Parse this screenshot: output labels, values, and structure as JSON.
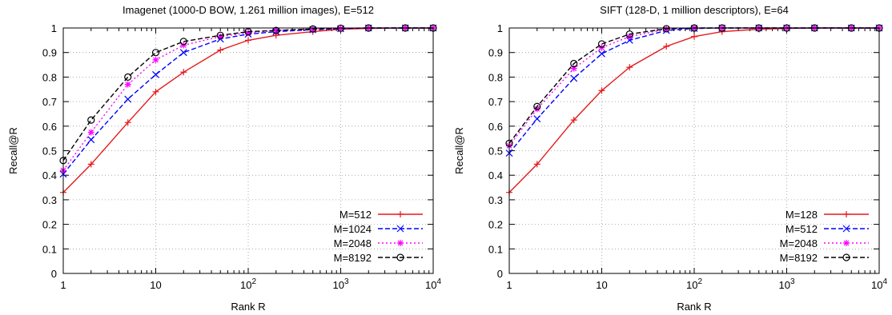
{
  "chart_data": [
    {
      "type": "line",
      "title": "Imagenet (1000-D BOW, 1.261 million images), E=512",
      "xlabel": "Rank R",
      "ylabel": "Recall@R",
      "xscale": "log",
      "xlim": [
        1,
        10000
      ],
      "ylim": [
        0,
        1
      ],
      "grid": true,
      "legend_position": "bottom-right",
      "x": [
        1,
        2,
        5,
        10,
        20,
        50,
        100,
        200,
        500,
        1000,
        2000,
        5000,
        10000
      ],
      "xticks": [
        {
          "value": 1,
          "label": "1",
          "exp": ""
        },
        {
          "value": 10,
          "label": "10",
          "exp": ""
        },
        {
          "value": 100,
          "label": "10",
          "exp": "2"
        },
        {
          "value": 1000,
          "label": "10",
          "exp": "3"
        },
        {
          "value": 10000,
          "label": "10",
          "exp": "4"
        }
      ],
      "yticks": [
        "0",
        "0.1",
        "0.2",
        "0.3",
        "0.4",
        "0.5",
        "0.6",
        "0.7",
        "0.8",
        "0.9",
        "1"
      ],
      "series": [
        {
          "name": "M=512",
          "color": "#e41a1c",
          "marker": "plus",
          "dash": "",
          "values": [
            0.33,
            0.445,
            0.615,
            0.74,
            0.82,
            0.91,
            0.95,
            0.97,
            0.985,
            0.995,
            0.998,
            1.0,
            1.0
          ]
        },
        {
          "name": "M=1024",
          "color": "#0000ff",
          "marker": "cross",
          "dash": "6,3",
          "values": [
            0.405,
            0.545,
            0.71,
            0.81,
            0.9,
            0.955,
            0.975,
            0.985,
            0.993,
            0.997,
            1.0,
            1.0,
            1.0
          ]
        },
        {
          "name": "M=2048",
          "color": "#ff00ff",
          "marker": "star",
          "dash": "2,3",
          "values": [
            0.42,
            0.575,
            0.77,
            0.87,
            0.93,
            0.965,
            0.98,
            0.99,
            0.995,
            0.998,
            1.0,
            1.0,
            1.0
          ]
        },
        {
          "name": "M=8192",
          "color": "#000000",
          "marker": "circle",
          "dash": "6,3",
          "values": [
            0.46,
            0.625,
            0.8,
            0.9,
            0.945,
            0.97,
            0.985,
            0.99,
            0.996,
            0.999,
            1.0,
            1.0,
            1.0
          ]
        }
      ]
    },
    {
      "type": "line",
      "title": "SIFT (128-D, 1 million descriptors), E=64",
      "xlabel": "Rank R",
      "ylabel": "Recall@R",
      "xscale": "log",
      "xlim": [
        1,
        10000
      ],
      "ylim": [
        0,
        1
      ],
      "grid": true,
      "legend_position": "bottom-right",
      "x": [
        1,
        2,
        5,
        10,
        20,
        50,
        100,
        200,
        500,
        1000,
        2000,
        5000,
        10000
      ],
      "xticks": [
        {
          "value": 1,
          "label": "1",
          "exp": ""
        },
        {
          "value": 10,
          "label": "10",
          "exp": ""
        },
        {
          "value": 100,
          "label": "10",
          "exp": "2"
        },
        {
          "value": 1000,
          "label": "10",
          "exp": "3"
        },
        {
          "value": 10000,
          "label": "10",
          "exp": "4"
        }
      ],
      "yticks": [
        "0",
        "0.1",
        "0.2",
        "0.3",
        "0.4",
        "0.5",
        "0.6",
        "0.7",
        "0.8",
        "0.9",
        "1"
      ],
      "series": [
        {
          "name": "M=128",
          "color": "#e41a1c",
          "marker": "plus",
          "dash": "",
          "values": [
            0.33,
            0.445,
            0.625,
            0.745,
            0.84,
            0.925,
            0.965,
            0.985,
            0.995,
            0.998,
            1.0,
            1.0,
            1.0
          ]
        },
        {
          "name": "M=512",
          "color": "#0000ff",
          "marker": "cross",
          "dash": "6,3",
          "values": [
            0.49,
            0.63,
            0.795,
            0.895,
            0.95,
            0.99,
            0.998,
            1.0,
            1.0,
            1.0,
            1.0,
            1.0,
            1.0
          ]
        },
        {
          "name": "M=2048",
          "color": "#ff00ff",
          "marker": "star",
          "dash": "2,3",
          "values": [
            0.52,
            0.67,
            0.835,
            0.92,
            0.965,
            0.995,
            1.0,
            1.0,
            1.0,
            1.0,
            1.0,
            1.0,
            1.0
          ]
        },
        {
          "name": "M=8192",
          "color": "#000000",
          "marker": "circle",
          "dash": "6,3",
          "values": [
            0.53,
            0.68,
            0.855,
            0.935,
            0.975,
            0.997,
            1.0,
            1.0,
            1.0,
            1.0,
            1.0,
            1.0,
            1.0
          ]
        }
      ]
    }
  ]
}
